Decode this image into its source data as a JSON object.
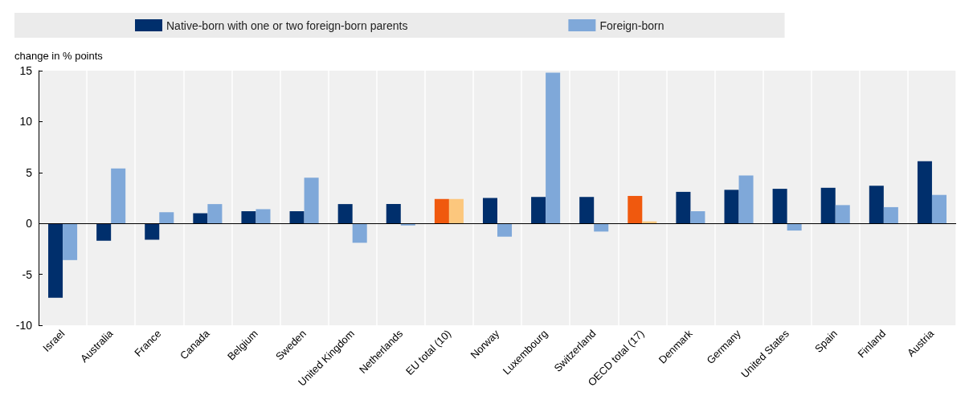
{
  "chart_data": {
    "type": "bar",
    "ylabel": "change in % points",
    "categories": [
      "Israel",
      "Australia",
      "France",
      "Canada",
      "Belgium",
      "Sweden",
      "United Kingdom",
      "Netherlands",
      "EU total (10)",
      "Norway",
      "Luxembourg",
      "Switzerland",
      "OECD total (17)",
      "Denmark",
      "Germany",
      "United States",
      "Spain",
      "Finland",
      "Austria"
    ],
    "series": [
      {
        "name": "Native-born with one or two foreign-born parents",
        "color": "#002f6c",
        "colors": [
          "#002f6c",
          "#002f6c",
          "#002f6c",
          "#002f6c",
          "#002f6c",
          "#002f6c",
          "#002f6c",
          "#002f6c",
          "#f0590e",
          "#002f6c",
          "#002f6c",
          "#002f6c",
          "#f0590e",
          "#002f6c",
          "#002f6c",
          "#002f6c",
          "#002f6c",
          "#002f6c",
          "#002f6c"
        ],
        "values": [
          -7.3,
          -1.7,
          -1.6,
          1.0,
          1.2,
          1.2,
          1.9,
          1.9,
          2.4,
          2.5,
          2.6,
          2.6,
          2.7,
          3.1,
          3.3,
          3.4,
          3.5,
          3.7,
          6.1
        ]
      },
      {
        "name": "Foreign-born",
        "color": "#7fa8d9",
        "colors": [
          "#7fa8d9",
          "#7fa8d9",
          "#7fa8d9",
          "#7fa8d9",
          "#7fa8d9",
          "#7fa8d9",
          "#7fa8d9",
          "#7fa8d9",
          "#fcc77d",
          "#7fa8d9",
          "#7fa8d9",
          "#7fa8d9",
          "#fcc77d",
          "#7fa8d9",
          "#7fa8d9",
          "#7fa8d9",
          "#7fa8d9",
          "#7fa8d9",
          "#7fa8d9"
        ],
        "values": [
          -3.6,
          5.4,
          1.1,
          1.9,
          1.4,
          4.5,
          -1.9,
          -0.2,
          2.4,
          -1.3,
          14.8,
          -0.8,
          0.2,
          1.2,
          4.7,
          -0.7,
          1.8,
          1.6,
          2.8
        ]
      }
    ],
    "ylim": [
      -10,
      15
    ],
    "yticks": [
      -10,
      -5,
      0,
      5,
      10,
      15
    ],
    "grid": "x",
    "legend": "top"
  }
}
